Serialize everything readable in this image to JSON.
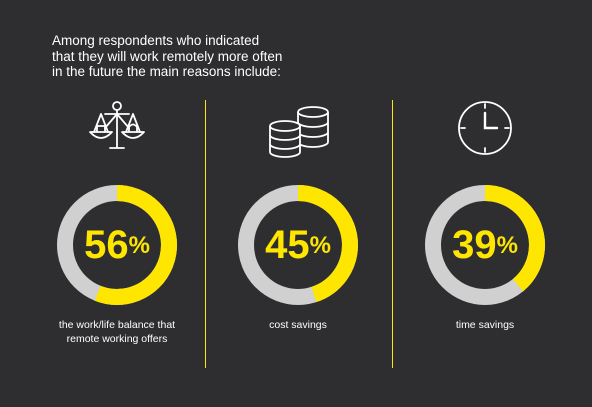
{
  "intro": {
    "line1": "Among respondents who indicated",
    "line2": "that they will work remotely more often",
    "line3": "in the future the main reasons include:"
  },
  "colors": {
    "background": "#2e2e30",
    "accent": "#ffe600",
    "track": "#d0d0d0",
    "text": "#ffffff"
  },
  "items": [
    {
      "icon": "balance-scale-icon",
      "value": 56,
      "value_label": "56",
      "suffix": "%",
      "caption_line1": "the work/life balance that",
      "caption_line2": "remote working offers"
    },
    {
      "icon": "coin-stack-icon",
      "value": 45,
      "value_label": "45",
      "suffix": "%",
      "caption_line1": "cost savings",
      "caption_line2": ""
    },
    {
      "icon": "clock-icon",
      "value": 39,
      "value_label": "39",
      "suffix": "%",
      "caption_line1": "time savings",
      "caption_line2": ""
    }
  ],
  "chart_data": {
    "type": "donut",
    "categories": [
      "the work/life balance that remote working offers",
      "cost savings",
      "time savings"
    ],
    "values": [
      56,
      45,
      39
    ],
    "unit": "%"
  }
}
